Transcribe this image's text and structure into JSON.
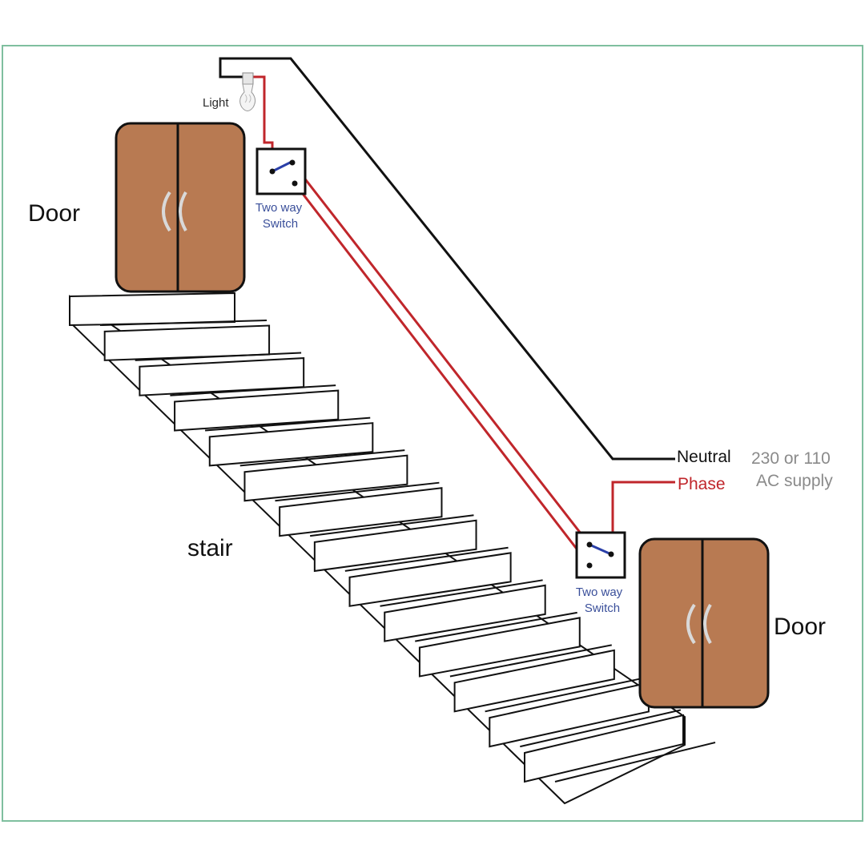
{
  "labels": {
    "door_upper": "Door",
    "door_lower": "Door",
    "stair": "stair",
    "light": "Light",
    "switch_upper_line1": "Two way",
    "switch_upper_line2": "Switch",
    "switch_lower_line1": "Two way",
    "switch_lower_line2": "Switch",
    "neutral": "Neutral",
    "phase": "Phase",
    "supply_line1": "230 or 110",
    "supply_line2": "AC supply"
  },
  "colors": {
    "door": "#b87a52",
    "phase_wire": "#c0262b",
    "neutral_wire": "#111111",
    "switch_lever": "#2a3fa8",
    "frame": "#7fbf9f"
  }
}
